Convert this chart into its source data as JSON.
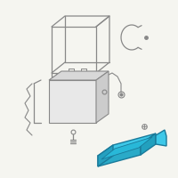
{
  "bg_color": "#f5f5f0",
  "tray_color": "#3ec8e8",
  "tray_outline": "#1a7a9a",
  "line_color": "#888888",
  "line_color2": "#aaaaaa",
  "lw": 0.9,
  "fig_size": [
    2.0,
    2.0
  ],
  "dpi": 100
}
